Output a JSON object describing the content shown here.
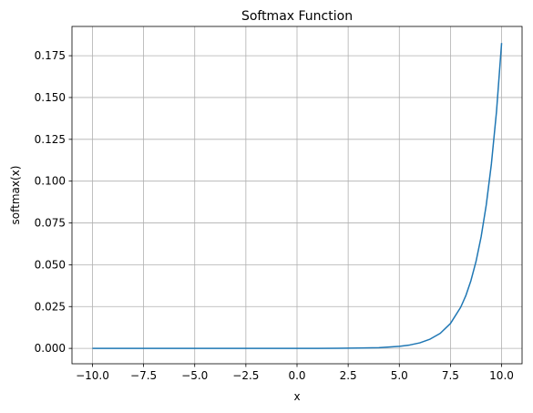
{
  "chart_data": {
    "type": "line",
    "title": "Softmax Function",
    "xlabel": "x",
    "ylabel": "softmax(x)",
    "xlim": [
      -11.0,
      11.0
    ],
    "ylim": [
      -0.0092,
      0.1925
    ],
    "grid": true,
    "legend": "none",
    "x_ticks": [
      -10.0,
      -7.5,
      -5.0,
      -2.5,
      0.0,
      2.5,
      5.0,
      7.5,
      10.0
    ],
    "x_tick_labels": [
      "−10.0",
      "−7.5",
      "−5.0",
      "−2.5",
      "0.0",
      "2.5",
      "5.0",
      "7.5",
      "10.0"
    ],
    "y_ticks": [
      0.0,
      0.025,
      0.05,
      0.075,
      0.1,
      0.125,
      0.15,
      0.175
    ],
    "y_tick_labels": [
      "0.000",
      "0.025",
      "0.050",
      "0.075",
      "0.100",
      "0.125",
      "0.150",
      "0.175"
    ],
    "series": [
      {
        "color": "#1f77b4",
        "x": [
          -10,
          -9,
          -8,
          -7,
          -6,
          -5,
          -4,
          -3,
          -2,
          -1,
          0,
          1,
          2,
          3,
          4,
          5,
          5.5,
          6,
          6.5,
          7,
          7.5,
          8,
          8.25,
          8.5,
          8.75,
          9,
          9.25,
          9.5,
          9.75,
          10
        ],
        "y": [
          0.0,
          0.0,
          0.0,
          0.0,
          0.0,
          0.0,
          0.0,
          0.0,
          0.0,
          0.0,
          0.0,
          0.0,
          0.0001,
          0.0002,
          0.0004,
          0.0012,
          0.002,
          0.0033,
          0.0055,
          0.009,
          0.0149,
          0.0246,
          0.0315,
          0.0405,
          0.052,
          0.0668,
          0.0858,
          0.1102,
          0.1415,
          0.1826
        ]
      }
    ]
  }
}
